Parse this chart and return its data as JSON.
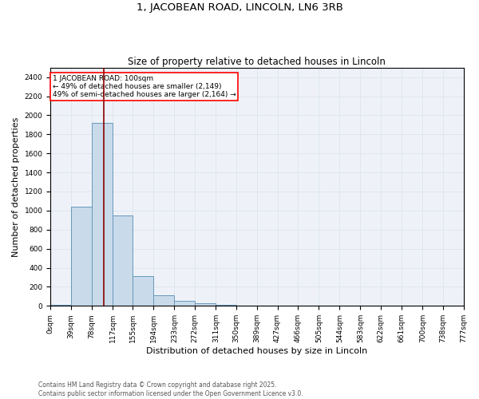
{
  "title": "1, JACOBEAN ROAD, LINCOLN, LN6 3RB",
  "subtitle": "Size of property relative to detached houses in Lincoln",
  "xlabel": "Distribution of detached houses by size in Lincoln",
  "ylabel": "Number of detached properties",
  "bar_color": "#c9daea",
  "bar_edge_color": "#6699bb",
  "bar_values": [
    15,
    1040,
    1920,
    950,
    315,
    115,
    55,
    25,
    10,
    5,
    2,
    1,
    0,
    0,
    0,
    0,
    0,
    0,
    0,
    0
  ],
  "bin_edges": [
    0,
    39,
    78,
    117,
    155,
    194,
    233,
    272,
    311,
    350,
    389,
    427,
    466,
    505,
    544,
    583,
    622,
    661,
    700,
    738,
    777
  ],
  "tick_labels": [
    "0sqm",
    "39sqm",
    "78sqm",
    "117sqm",
    "155sqm",
    "194sqm",
    "233sqm",
    "272sqm",
    "311sqm",
    "350sqm",
    "389sqm",
    "427sqm",
    "466sqm",
    "505sqm",
    "544sqm",
    "583sqm",
    "622sqm",
    "661sqm",
    "700sqm",
    "738sqm",
    "777sqm"
  ],
  "ylim": [
    0,
    2500
  ],
  "yticks": [
    0,
    200,
    400,
    600,
    800,
    1000,
    1200,
    1400,
    1600,
    1800,
    2000,
    2200,
    2400
  ],
  "vline_x": 100,
  "vline_color": "#8b0000",
  "annotation_text": "1 JACOBEAN ROAD: 100sqm\n← 49% of detached houses are smaller (2,149)\n49% of semi-detached houses are larger (2,164) →",
  "grid_color": "#dde4ee",
  "bg_color": "#eef2f8",
  "footer_text": "Contains HM Land Registry data © Crown copyright and database right 2025.\nContains public sector information licensed under the Open Government Licence v3.0.",
  "title_fontsize": 9.5,
  "subtitle_fontsize": 8.5,
  "axis_label_fontsize": 8,
  "tick_fontsize": 6.5,
  "annotation_fontsize": 6.5,
  "footer_fontsize": 5.5
}
